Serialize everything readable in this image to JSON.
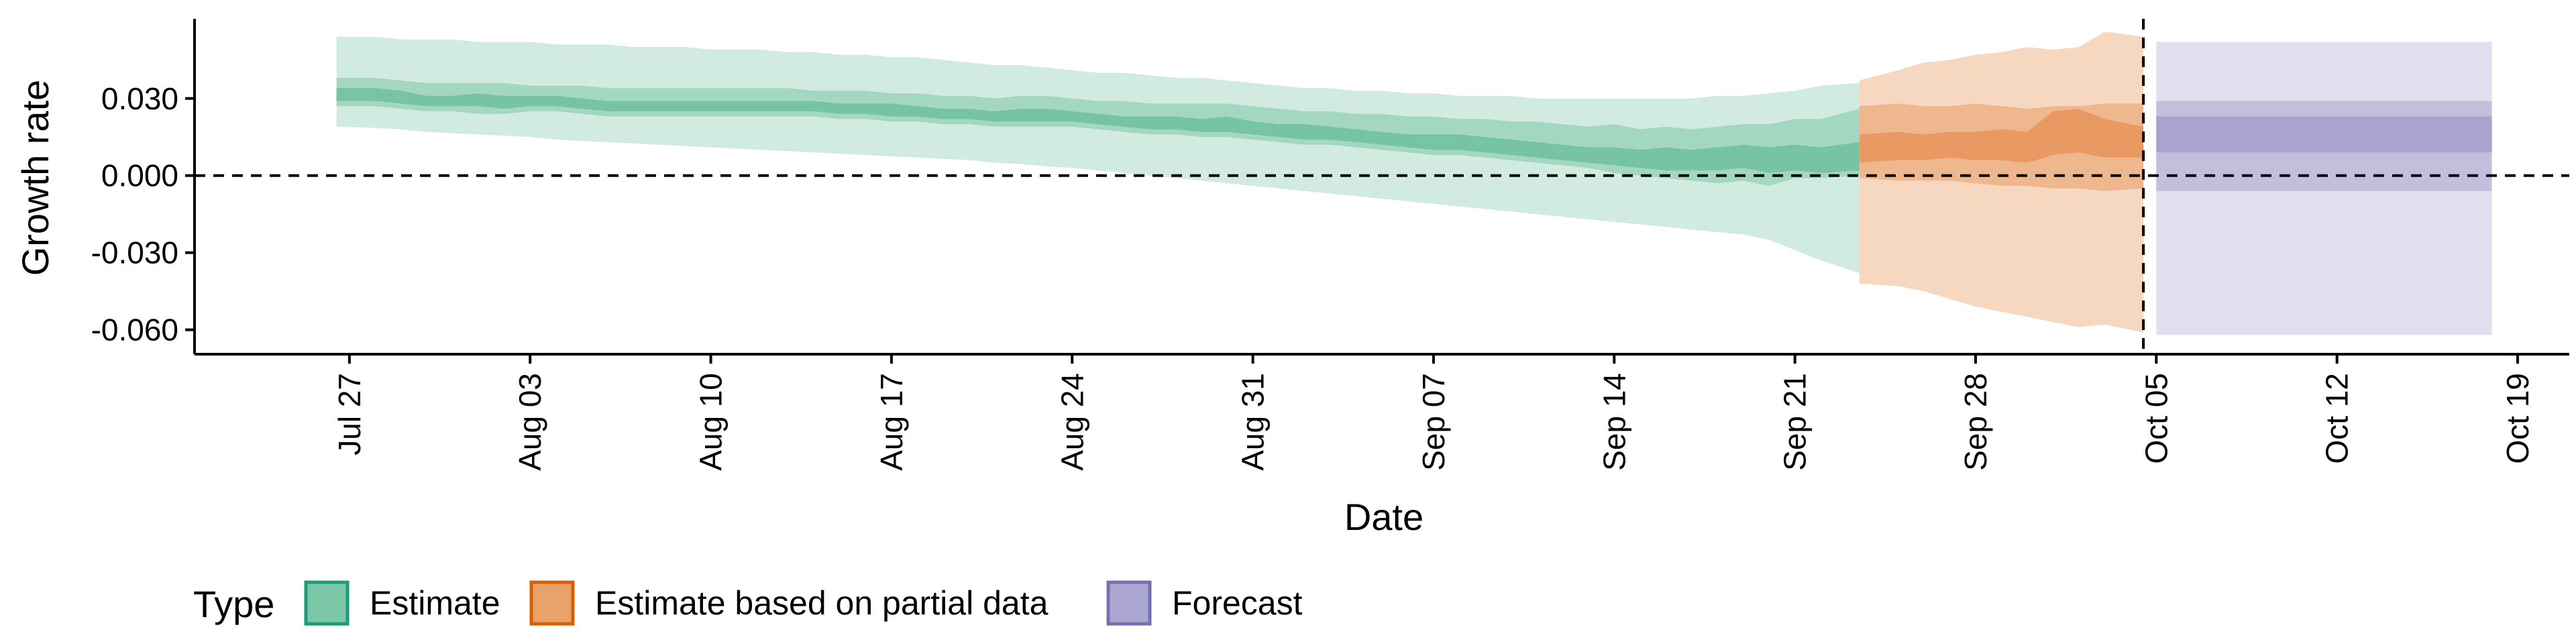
{
  "chart_data": {
    "type": "area",
    "xlabel": "Date",
    "ylabel": "Growth rate",
    "x_range": [
      "2020-07-21",
      "2020-10-21"
    ],
    "ylim": [
      -0.0695,
      0.061
    ],
    "y_ticks": [
      0.03,
      0.0,
      -0.03,
      -0.06
    ],
    "y_tick_labels": [
      "0.030",
      "0.000",
      "-0.030",
      "-0.060"
    ],
    "x_ticks": [
      "2020-07-27",
      "2020-08-03",
      "2020-08-10",
      "2020-08-17",
      "2020-08-24",
      "2020-08-31",
      "2020-09-07",
      "2020-09-14",
      "2020-09-21",
      "2020-09-28",
      "2020-10-05",
      "2020-10-12",
      "2020-10-19"
    ],
    "x_tick_labels": [
      "Jul 27",
      "Aug 03",
      "Aug 10",
      "Aug 17",
      "Aug 24",
      "Aug 31",
      "Sep 07",
      "Sep 14",
      "Sep 21",
      "Sep 28",
      "Oct 05",
      "Oct 12",
      "Oct 19"
    ],
    "reference_lines": [
      {
        "axis": "y",
        "value": 0.0,
        "style": "dashed"
      },
      {
        "axis": "x",
        "value": "2020-10-04",
        "style": "dashed"
      }
    ],
    "legend": {
      "title": "Type",
      "position": "bottom-left",
      "items": [
        {
          "label": "Estimate",
          "fill": "#7cc7a8",
          "stroke": "#1b9e77"
        },
        {
          "label": "Estimate based on partial data",
          "fill": "#e9a26a",
          "stroke": "#d95f02"
        },
        {
          "label": "Forecast",
          "fill": "#aba7d2",
          "stroke": "#7570b3"
        }
      ]
    },
    "series": [
      {
        "name": "Estimate",
        "colors": {
          "outer": "#d1ebe1",
          "mid": "#a3d7c2",
          "inner": "#76c4a4"
        },
        "x": [
          "2020-07-27",
          "2020-07-28",
          "2020-07-29",
          "2020-07-30",
          "2020-07-31",
          "2020-08-01",
          "2020-08-02",
          "2020-08-03",
          "2020-08-04",
          "2020-08-05",
          "2020-08-06",
          "2020-08-07",
          "2020-08-08",
          "2020-08-09",
          "2020-08-10",
          "2020-08-11",
          "2020-08-12",
          "2020-08-13",
          "2020-08-14",
          "2020-08-15",
          "2020-08-16",
          "2020-08-17",
          "2020-08-18",
          "2020-08-19",
          "2020-08-20",
          "2020-08-21",
          "2020-08-22",
          "2020-08-23",
          "2020-08-24",
          "2020-08-25",
          "2020-08-26",
          "2020-08-27",
          "2020-08-28",
          "2020-08-29",
          "2020-08-30",
          "2020-08-31",
          "2020-09-01",
          "2020-09-02",
          "2020-09-03",
          "2020-09-04",
          "2020-09-05",
          "2020-09-06",
          "2020-09-07",
          "2020-09-08",
          "2020-09-09",
          "2020-09-10",
          "2020-09-11",
          "2020-09-12",
          "2020-09-13",
          "2020-09-14",
          "2020-09-15",
          "2020-09-16",
          "2020-09-17",
          "2020-09-18",
          "2020-09-19",
          "2020-09-20",
          "2020-09-21",
          "2020-09-22",
          "2020-09-23"
        ],
        "lower90": [
          0.019,
          0.0185,
          0.018,
          0.017,
          0.0165,
          0.016,
          0.0155,
          0.015,
          0.014,
          0.0135,
          0.013,
          0.0125,
          0.012,
          0.0115,
          0.011,
          0.0105,
          0.01,
          0.0095,
          0.009,
          0.0085,
          0.008,
          0.0075,
          0.007,
          0.0065,
          0.006,
          0.005,
          0.0045,
          0.0035,
          0.003,
          0.002,
          0.001,
          0.0,
          -0.001,
          -0.002,
          -0.003,
          -0.004,
          -0.005,
          -0.006,
          -0.007,
          -0.008,
          -0.009,
          -0.01,
          -0.011,
          -0.012,
          -0.013,
          -0.014,
          -0.015,
          -0.016,
          -0.017,
          -0.018,
          -0.019,
          -0.02,
          -0.021,
          -0.022,
          -0.023,
          -0.025,
          -0.029,
          -0.033,
          -0.038
        ],
        "lower50": [
          0.027,
          0.027,
          0.026,
          0.025,
          0.025,
          0.024,
          0.024,
          0.025,
          0.025,
          0.024,
          0.023,
          0.023,
          0.023,
          0.023,
          0.023,
          0.023,
          0.023,
          0.023,
          0.023,
          0.022,
          0.022,
          0.021,
          0.021,
          0.02,
          0.02,
          0.019,
          0.019,
          0.019,
          0.019,
          0.018,
          0.017,
          0.016,
          0.016,
          0.015,
          0.015,
          0.014,
          0.013,
          0.012,
          0.012,
          0.011,
          0.01,
          0.009,
          0.008,
          0.008,
          0.007,
          0.006,
          0.005,
          0.004,
          0.003,
          0.001,
          0.0,
          -0.001,
          -0.002,
          -0.003,
          -0.002,
          -0.004,
          -0.001,
          -0.001,
          0.0
        ],
        "lower20": [
          0.029,
          0.029,
          0.028,
          0.027,
          0.027,
          0.027,
          0.026,
          0.027,
          0.027,
          0.026,
          0.025,
          0.025,
          0.025,
          0.025,
          0.025,
          0.025,
          0.025,
          0.025,
          0.025,
          0.024,
          0.024,
          0.023,
          0.023,
          0.022,
          0.022,
          0.021,
          0.021,
          0.021,
          0.021,
          0.02,
          0.019,
          0.018,
          0.018,
          0.017,
          0.017,
          0.016,
          0.015,
          0.014,
          0.014,
          0.013,
          0.012,
          0.011,
          0.01,
          0.01,
          0.009,
          0.008,
          0.007,
          0.006,
          0.005,
          0.004,
          0.003,
          0.002,
          0.002,
          0.002,
          0.003,
          0.001,
          0.002,
          0.001,
          0.002
        ],
        "upper20": [
          0.034,
          0.034,
          0.033,
          0.031,
          0.031,
          0.032,
          0.031,
          0.031,
          0.031,
          0.03,
          0.029,
          0.029,
          0.029,
          0.029,
          0.029,
          0.029,
          0.029,
          0.029,
          0.029,
          0.028,
          0.028,
          0.028,
          0.027,
          0.026,
          0.026,
          0.025,
          0.026,
          0.026,
          0.025,
          0.024,
          0.023,
          0.023,
          0.023,
          0.022,
          0.023,
          0.021,
          0.02,
          0.02,
          0.019,
          0.018,
          0.017,
          0.016,
          0.016,
          0.016,
          0.015,
          0.014,
          0.013,
          0.012,
          0.011,
          0.011,
          0.01,
          0.011,
          0.01,
          0.011,
          0.012,
          0.011,
          0.012,
          0.011,
          0.013
        ],
        "upper50": [
          0.038,
          0.038,
          0.037,
          0.036,
          0.036,
          0.036,
          0.036,
          0.035,
          0.035,
          0.035,
          0.034,
          0.034,
          0.034,
          0.034,
          0.034,
          0.034,
          0.034,
          0.034,
          0.033,
          0.033,
          0.033,
          0.032,
          0.032,
          0.031,
          0.031,
          0.03,
          0.031,
          0.031,
          0.03,
          0.029,
          0.029,
          0.028,
          0.028,
          0.028,
          0.028,
          0.027,
          0.026,
          0.025,
          0.025,
          0.024,
          0.024,
          0.023,
          0.023,
          0.022,
          0.022,
          0.021,
          0.021,
          0.02,
          0.019,
          0.02,
          0.018,
          0.019,
          0.018,
          0.019,
          0.02,
          0.02,
          0.022,
          0.022,
          0.026
        ],
        "upper90": [
          0.054,
          0.054,
          0.053,
          0.053,
          0.053,
          0.052,
          0.052,
          0.052,
          0.051,
          0.051,
          0.051,
          0.05,
          0.05,
          0.05,
          0.049,
          0.049,
          0.049,
          0.048,
          0.048,
          0.047,
          0.047,
          0.046,
          0.046,
          0.045,
          0.044,
          0.043,
          0.043,
          0.042,
          0.041,
          0.04,
          0.04,
          0.039,
          0.038,
          0.038,
          0.037,
          0.036,
          0.035,
          0.034,
          0.034,
          0.033,
          0.033,
          0.032,
          0.032,
          0.031,
          0.031,
          0.031,
          0.03,
          0.03,
          0.03,
          0.03,
          0.03,
          0.03,
          0.03,
          0.031,
          0.031,
          0.032,
          0.033,
          0.035,
          0.036
        ]
      },
      {
        "name": "Estimate based on partial data",
        "colors": {
          "outer": "#f6d8c0",
          "mid": "#efb78e",
          "inner": "#e89a62"
        },
        "x": [
          "2020-09-24",
          "2020-09-25",
          "2020-09-26",
          "2020-09-27",
          "2020-09-28",
          "2020-09-29",
          "2020-09-30",
          "2020-10-01",
          "2020-10-02",
          "2020-10-03",
          "2020-10-04"
        ],
        "lower90": [
          -0.042,
          -0.043,
          -0.045,
          -0.048,
          -0.051,
          -0.053,
          -0.055,
          -0.057,
          -0.059,
          -0.058,
          -0.061
        ],
        "lower50": [
          -0.001,
          -0.002,
          -0.002,
          -0.002,
          -0.003,
          -0.004,
          -0.004,
          -0.005,
          -0.005,
          -0.006,
          -0.005
        ],
        "lower20": [
          0.005,
          0.006,
          0.006,
          0.007,
          0.006,
          0.006,
          0.005,
          0.008,
          0.009,
          0.007,
          0.007
        ],
        "upper20": [
          0.016,
          0.017,
          0.016,
          0.017,
          0.017,
          0.018,
          0.017,
          0.025,
          0.026,
          0.022,
          0.019
        ],
        "upper50": [
          0.027,
          0.028,
          0.027,
          0.027,
          0.028,
          0.027,
          0.026,
          0.027,
          0.027,
          0.028,
          0.028
        ],
        "upper90": [
          0.037,
          0.041,
          0.044,
          0.045,
          0.047,
          0.048,
          0.05,
          0.049,
          0.05,
          0.056,
          0.054
        ]
      },
      {
        "name": "Forecast",
        "colors": {
          "outer": "#e0dfed",
          "mid": "#c2bfdd",
          "inner": "#a9a4cf"
        },
        "x": [
          "2020-10-05",
          "2020-10-18"
        ],
        "lower90": [
          -0.062,
          -0.062
        ],
        "lower50": [
          -0.006,
          -0.006
        ],
        "lower20": [
          0.009,
          0.009
        ],
        "upper20": [
          0.023,
          0.023
        ],
        "upper50": [
          0.029,
          0.029
        ],
        "upper90": [
          0.052,
          0.052
        ]
      }
    ]
  }
}
